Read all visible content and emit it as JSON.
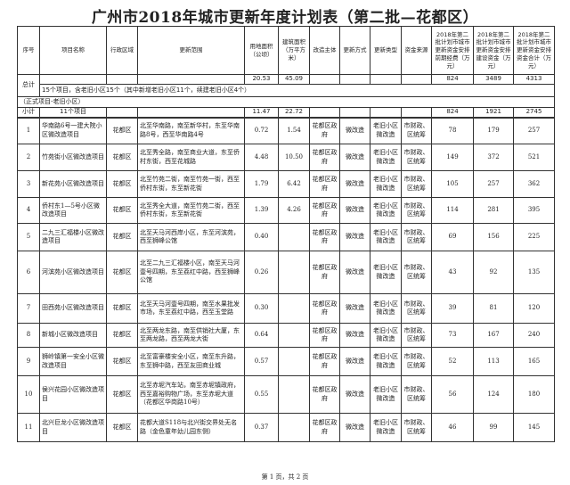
{
  "title": "广州市2018年城市更新年度计划表（第二批—花都区）",
  "headers": [
    "序号",
    "项目名称",
    "行政区域",
    "更新范围",
    "用地面积（公顷）",
    "建筑面积（万平方米）",
    "改造主体",
    "更新方式",
    "更新类型",
    "资金来源",
    "2018年第二批计划市城市更新资金安排前期经费（万元）",
    "2018年第二批计划市城市更新资金安排建设资金（万元）",
    "2018年第二批计划市城市更新资金安排资金合计（万元）"
  ],
  "total": {
    "label": "总计",
    "land": "20.53",
    "building": "45.09",
    "prelim": "824",
    "construction": "3489",
    "sum": "4313",
    "note": "15个项目，含老旧小区15个（其中新增老旧小区11个，续建老旧小区4个）"
  },
  "section": "（正式项目-老旧小区）",
  "subtotal": {
    "label": "小计",
    "name": "11个项目",
    "land": "11.47",
    "building": "22.72",
    "prelim": "824",
    "construction": "1921",
    "sum": "2745"
  },
  "rows": [
    {
      "no": "1",
      "name": "华南路6号一建大院小区微改造项目",
      "district": "花都区",
      "scope": "北至华南路，南至新华村，东至华南路8号，西至华南路4号",
      "land": "0.72",
      "building": "1.54",
      "subject": "花都区政府",
      "method": "微改造",
      "type": "老旧小区微改造",
      "fund": "市财政、区统筹",
      "prelim": "78",
      "construction": "179",
      "sum": "257"
    },
    {
      "no": "2",
      "name": "竹苑街小区微改造项目",
      "district": "花都区",
      "scope": "北至秀全路，南至商业大道，东至侨村东街，西至花城路",
      "land": "4.48",
      "building": "10.50",
      "subject": "花都区政府",
      "method": "微改造",
      "type": "老旧小区微改造",
      "fund": "市财政、区统筹",
      "prelim": "149",
      "construction": "372",
      "sum": "521"
    },
    {
      "no": "3",
      "name": "新花苑小区微改造项目",
      "district": "花都区",
      "scope": "北至竹苑二街，南至竹苑一街，西至侨村东街，东至新花街",
      "land": "1.79",
      "building": "6.42",
      "subject": "花都区政府",
      "method": "微改造",
      "type": "老旧小区微改造",
      "fund": "市财政、区统筹",
      "prelim": "105",
      "construction": "257",
      "sum": "362"
    },
    {
      "no": "4",
      "name": "侨村东1—5号小区微改造项目",
      "district": "花都区",
      "scope": "北至秀全大道，南至竹苑二街，西至侨村东街，东至新花街",
      "land": "1.39",
      "building": "4.26",
      "subject": "花都区政府",
      "method": "微改造",
      "type": "老旧小区微改造",
      "fund": "市财政、区统筹",
      "prelim": "114",
      "construction": "281",
      "sum": "395"
    },
    {
      "no": "5",
      "name": "二九三汇福楼小区微改造项目",
      "district": "花都区",
      "scope": "北至天马河西岸小区，东至河滨苑，西至狮峰公馆",
      "land": "0.40",
      "building": "",
      "subject": "花都区政府",
      "method": "微改造",
      "type": "老旧小区微改造",
      "fund": "市财政、区统筹",
      "prelim": "69",
      "construction": "156",
      "sum": "225"
    },
    {
      "no": "6",
      "name": "河滨苑小区微改造项目",
      "district": "花都区",
      "scope": "北至二九三汇福楼小区，南至天马河壹号四期，东至荔红中路，西至狮峰公馆",
      "land": "0.26",
      "building": "",
      "subject": "花都区政府",
      "method": "微改造",
      "type": "老旧小区微改造",
      "fund": "市财政、区统筹",
      "prelim": "43",
      "construction": "92",
      "sum": "135"
    },
    {
      "no": "7",
      "name": "田西苑小区微改造项目",
      "district": "花都区",
      "scope": "北至天马河壹号四期，南至水果批发市场，东至荔红中路，西至玉堂路",
      "land": "0.30",
      "building": "",
      "subject": "花都区政府",
      "method": "微改造",
      "type": "老旧小区微改造",
      "fund": "市财政、区统筹",
      "prelim": "39",
      "construction": "81",
      "sum": "120"
    },
    {
      "no": "8",
      "name": "新城小区微改造项目",
      "district": "花都区",
      "scope": "北至两龙东路，南至供销社大厦，东至两龙路，西至两龙大街",
      "land": "0.64",
      "building": "",
      "subject": "花都区政府",
      "method": "微改造",
      "type": "老旧小区微改造",
      "fund": "市财政、区统筹",
      "prelim": "73",
      "construction": "167",
      "sum": "240"
    },
    {
      "no": "9",
      "name": "狮岭镇第一安全小区微改造项目",
      "district": "花都区",
      "scope": "北至富豪楼安全小区，南至东升路，东至狮中路，西至友田商业城",
      "land": "0.57",
      "building": "",
      "subject": "花都区政府",
      "method": "微改造",
      "type": "老旧小区微改造",
      "fund": "市财政、区统筹",
      "prelim": "52",
      "construction": "113",
      "sum": "165"
    },
    {
      "no": "10",
      "name": "侯兴花园小区微改造项目",
      "district": "花都区",
      "scope": "北至赤坭汽车站，南至赤坭镇政府，西至嘉裕购物广场，东至赤坭大道（花都区华岗路10号）",
      "land": "0.55",
      "building": "",
      "subject": "花都区政府",
      "method": "微改造",
      "type": "老旧小区微改造",
      "fund": "市财政、区统筹",
      "prelim": "56",
      "construction": "124",
      "sum": "180"
    },
    {
      "no": "11",
      "name": "北兴巨龙小区微改造项目",
      "district": "花都区",
      "scope": "花都大道S118与北兴街交界处无名路（金色童年幼儿园东侧）",
      "land": "0.37",
      "building": "",
      "subject": "花都区政府",
      "method": "微改造",
      "type": "老旧小区微改造",
      "fund": "市财政、区统筹",
      "prelim": "46",
      "construction": "99",
      "sum": "145"
    }
  ],
  "footer": "第 1 页，共 2 页"
}
